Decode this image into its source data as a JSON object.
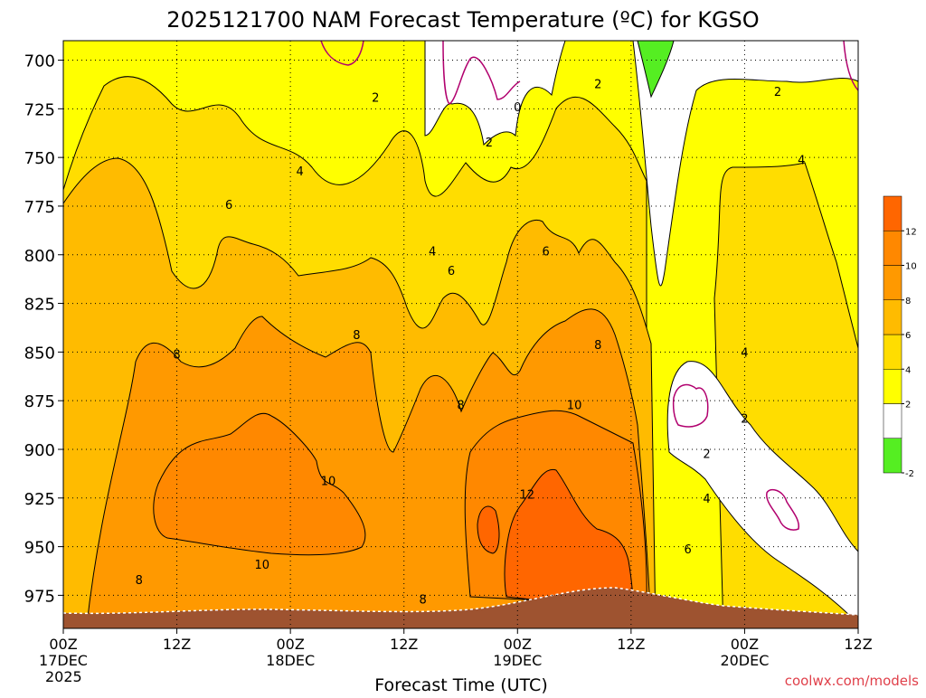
{
  "chart_data": {
    "type": "heatmap",
    "title": "2025121700 NAM Forecast Temperature (ºC) for KGSO",
    "xlabel": "Forecast Time (UTC)",
    "credit": "coolwx.com/models",
    "x_range": [
      0,
      84
    ],
    "x_ticks": [
      {
        "x": 0,
        "lines": [
          "00Z",
          "17DEC",
          "2025"
        ]
      },
      {
        "x": 12,
        "lines": [
          "12Z"
        ]
      },
      {
        "x": 24,
        "lines": [
          "00Z",
          "18DEC"
        ]
      },
      {
        "x": 36,
        "lines": [
          "12Z"
        ]
      },
      {
        "x": 48,
        "lines": [
          "00Z",
          "19DEC"
        ]
      },
      {
        "x": 60,
        "lines": [
          "12Z"
        ]
      },
      {
        "x": 72,
        "lines": [
          "00Z",
          "20DEC"
        ]
      },
      {
        "x": 84,
        "lines": [
          "12Z"
        ]
      }
    ],
    "y_range": [
      690,
      992
    ],
    "y_ticks": [
      700,
      725,
      750,
      775,
      800,
      825,
      850,
      875,
      900,
      925,
      950,
      975
    ],
    "color_scale": {
      "levels": [
        -2,
        0,
        2,
        4,
        6,
        8,
        10,
        12,
        14
      ],
      "colors": [
        "#55ee22",
        "#ffffff",
        "#ffff00",
        "#ffdd00",
        "#ffbb00",
        "#ff9900",
        "#ff8800",
        "#ff6600"
      ],
      "tick_labels": [
        "-2",
        "2",
        "4",
        "6",
        "8",
        "10",
        "12"
      ]
    },
    "contour_labels": [
      {
        "text": "2",
        "x": 33,
        "y": 719
      },
      {
        "text": "0",
        "x": 48,
        "y": 724
      },
      {
        "text": "2",
        "x": 56.5,
        "y": 712
      },
      {
        "text": "2",
        "x": 75.5,
        "y": 716
      },
      {
        "text": "2",
        "x": 45,
        "y": 742
      },
      {
        "text": "4",
        "x": 25,
        "y": 757
      },
      {
        "text": "4",
        "x": 78,
        "y": 751
      },
      {
        "text": "6",
        "x": 17.5,
        "y": 774
      },
      {
        "text": "4",
        "x": 39,
        "y": 798
      },
      {
        "text": "6",
        "x": 41,
        "y": 808
      },
      {
        "text": "6",
        "x": 51,
        "y": 798
      },
      {
        "text": "8",
        "x": 31,
        "y": 841
      },
      {
        "text": "8",
        "x": 56.5,
        "y": 846
      },
      {
        "text": "4",
        "x": 72,
        "y": 850
      },
      {
        "text": "8",
        "x": 12,
        "y": 851
      },
      {
        "text": "8",
        "x": 42,
        "y": 877
      },
      {
        "text": "10",
        "x": 54,
        "y": 877
      },
      {
        "text": "2",
        "x": 72,
        "y": 884
      },
      {
        "text": "2",
        "x": 68,
        "y": 902
      },
      {
        "text": "10",
        "x": 28,
        "y": 916
      },
      {
        "text": "12",
        "x": 49,
        "y": 923
      },
      {
        "text": "4",
        "x": 68,
        "y": 925
      },
      {
        "text": "6",
        "x": 66,
        "y": 951
      },
      {
        "text": "10",
        "x": 21,
        "y": 959
      },
      {
        "text": "8",
        "x": 8,
        "y": 967
      },
      {
        "text": "8",
        "x": 38,
        "y": 977
      }
    ]
  }
}
